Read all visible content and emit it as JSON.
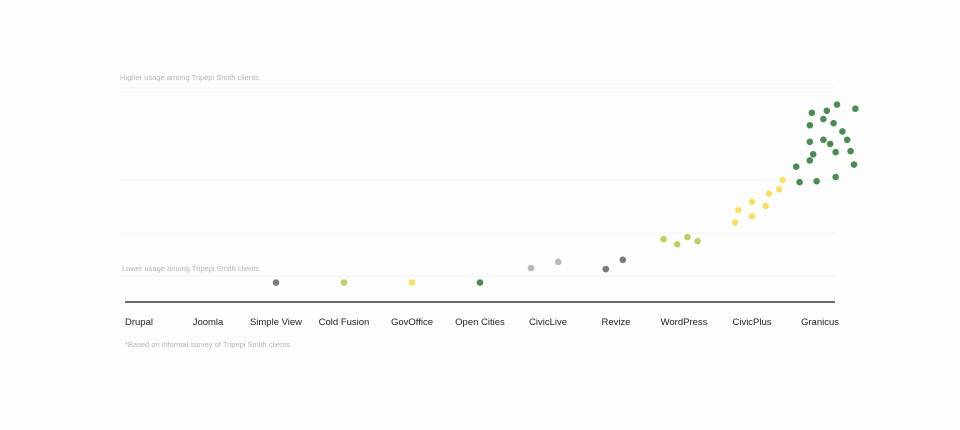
{
  "chart_data": {
    "type": "scatter",
    "title": "",
    "xlabel": "",
    "ylabel": "",
    "grid": true,
    "legend": "none",
    "band_labels": {
      "high": "Higher usage among Tripepi Smith clients",
      "low": "Lower usage among Tripepi Smith clients"
    },
    "footnote": "*Based on informal survey of Tripepi Smith clients",
    "categories": [
      "Drupal",
      "Joomla",
      "Simple View",
      "Cold Fusion",
      "GovOffice",
      "Open Cities",
      "CivicLive",
      "Revize",
      "WordPress",
      "CivicPlus",
      "Granicus"
    ],
    "colors": {
      "dark_green": "#4e8a55",
      "light_green": "#bcd06a",
      "yellow": "#f5df6f",
      "dark_gray": "#7a7a7a",
      "light_gray": "#b9b9b9",
      "axis": "#111111",
      "grid": "#ececec"
    },
    "series": [
      {
        "category": "Simple View",
        "color": "dark_gray",
        "points": [
          [
            0,
            0.06
          ]
        ]
      },
      {
        "category": "Cold Fusion",
        "color": "light_green",
        "points": [
          [
            0,
            0.06
          ]
        ]
      },
      {
        "category": "GovOffice",
        "color": "yellow",
        "points": [
          [
            0,
            0.06
          ]
        ]
      },
      {
        "category": "Open Cities",
        "color": "dark_green",
        "points": [
          [
            0,
            0.06
          ]
        ]
      },
      {
        "category": "CivicLive",
        "color": "light_gray",
        "points": [
          [
            -0.25,
            0.13
          ],
          [
            0.15,
            0.16
          ]
        ]
      },
      {
        "category": "Revize",
        "color": "dark_gray",
        "points": [
          [
            -0.15,
            0.125
          ],
          [
            0.1,
            0.17
          ]
        ]
      },
      {
        "category": "WordPress",
        "color": "light_green",
        "points": [
          [
            -0.3,
            0.27
          ],
          [
            -0.1,
            0.245
          ],
          [
            0.05,
            0.28
          ],
          [
            0.2,
            0.26
          ]
        ]
      },
      {
        "category": "CivicPlus",
        "color": "yellow",
        "points": [
          [
            -0.25,
            0.35
          ],
          [
            -0.2,
            0.41
          ],
          [
            0.0,
            0.38
          ],
          [
            0.0,
            0.45
          ],
          [
            0.2,
            0.43
          ],
          [
            0.25,
            0.49
          ],
          [
            0.4,
            0.51
          ],
          [
            0.45,
            0.555
          ]
        ]
      },
      {
        "category": "Granicus",
        "color": "dark_green",
        "points": [
          [
            -0.35,
            0.62
          ],
          [
            -0.3,
            0.545
          ],
          [
            -0.15,
            0.65
          ],
          [
            -0.15,
            0.74
          ],
          [
            -0.1,
            0.68
          ],
          [
            -0.15,
            0.82
          ],
          [
            -0.12,
            0.88
          ],
          [
            -0.05,
            0.55
          ],
          [
            0.05,
            0.75
          ],
          [
            0.05,
            0.85
          ],
          [
            0.1,
            0.89
          ],
          [
            0.15,
            0.73
          ],
          [
            0.2,
            0.83
          ],
          [
            0.23,
            0.69
          ],
          [
            0.23,
            0.57
          ],
          [
            0.25,
            0.92
          ],
          [
            0.33,
            0.79
          ],
          [
            0.4,
            0.75
          ],
          [
            0.45,
            0.695
          ],
          [
            0.5,
            0.63
          ],
          [
            0.52,
            0.9
          ]
        ]
      }
    ]
  }
}
